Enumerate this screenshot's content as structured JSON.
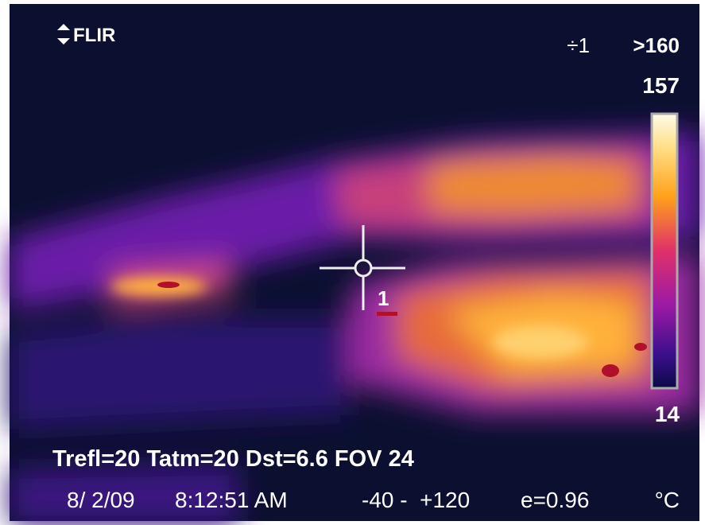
{
  "overlay": {
    "logo": "FLIR",
    "top_right": {
      "mode": "÷1",
      "range_max": ">160"
    },
    "scale": {
      "max": "157",
      "min": "14"
    },
    "spot_label": "1",
    "params": "Trefl=20 Tatm=20 Dst=6.6 FOV 24",
    "status": {
      "date": "8/ 2/09",
      "time": "8:12:51 AM",
      "range": "-40 -  +120",
      "emissivity": "e=0.96",
      "unit": "°C"
    }
  }
}
